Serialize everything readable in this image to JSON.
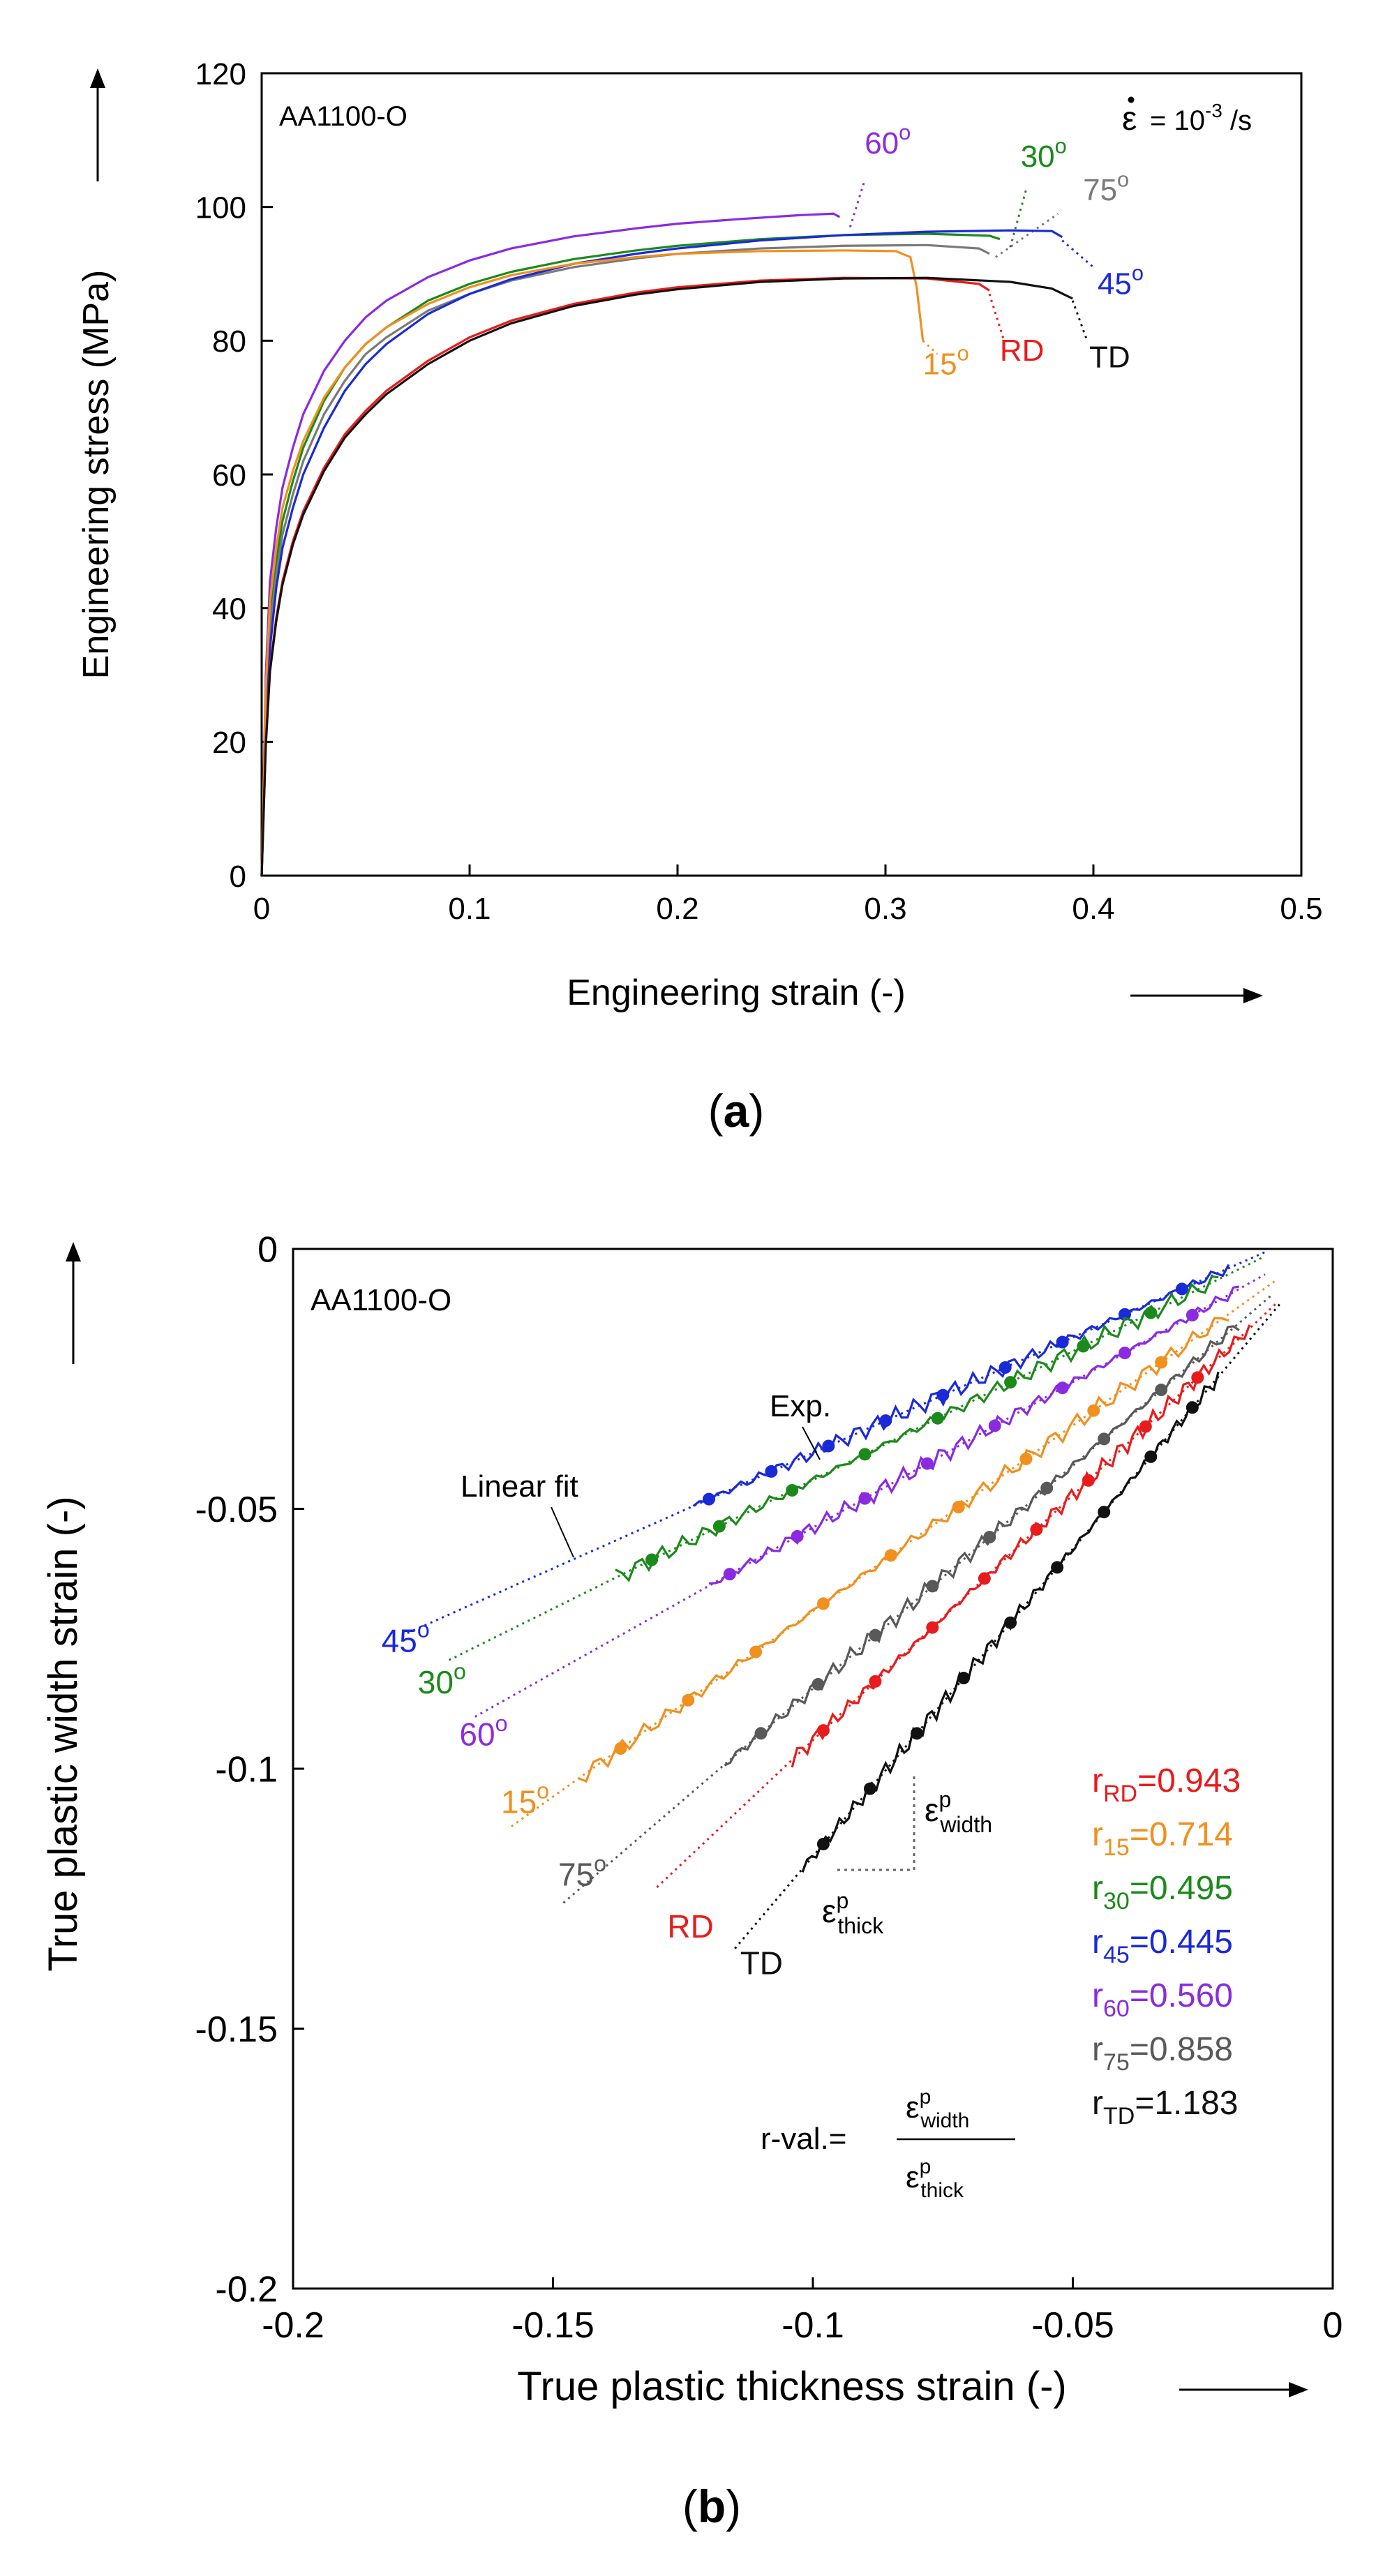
{
  "figure": {
    "caption_a": {
      "open": "(",
      "letter": "a",
      "close": ")"
    },
    "caption_b": {
      "open": "(",
      "letter": "b",
      "close": ")"
    }
  },
  "chart_data": [
    {
      "type": "line",
      "panel": "a",
      "material_label": "AA1100-O",
      "rate_label": {
        "epsilon": "ε",
        "text": "= 10",
        "exponent": "-3",
        "unit": " /s"
      },
      "xlabel": "Engineering strain (-)",
      "ylabel": "Engineering stress (MPa)",
      "xlim": [
        0,
        0.5
      ],
      "ylim": [
        0,
        120
      ],
      "xticks": [
        0,
        0.1,
        0.2,
        0.3,
        0.4,
        0.5
      ],
      "xtick_labels": [
        "0",
        "0.1",
        "0.2",
        "0.3",
        "0.4",
        "0.5"
      ],
      "yticks": [
        0,
        20,
        40,
        60,
        80,
        100,
        120
      ],
      "ytick_labels": [
        "0",
        "20",
        "40",
        "60",
        "80",
        "100",
        "120"
      ],
      "grid": false,
      "series": [
        {
          "name": "60",
          "deg": true,
          "color": "#8a2be2",
          "x": [
            0,
            0.002,
            0.004,
            0.007,
            0.01,
            0.015,
            0.02,
            0.03,
            0.04,
            0.05,
            0.06,
            0.08,
            0.1,
            0.12,
            0.15,
            0.18,
            0.2,
            0.23,
            0.26,
            0.275,
            0.278
          ],
          "y": [
            0,
            30,
            44,
            52,
            58,
            64,
            69,
            75.5,
            80,
            83.5,
            86,
            89.5,
            92,
            93.8,
            95.6,
            96.8,
            97.5,
            98.2,
            98.8,
            99.0,
            98.5
          ],
          "label_x": 0.29,
          "label_y": 108,
          "leader": [
            0.283,
            97,
            0.29,
            104
          ]
        },
        {
          "name": "30",
          "deg": true,
          "color": "#1b8a1b",
          "x": [
            0,
            0.002,
            0.004,
            0.007,
            0.01,
            0.015,
            0.02,
            0.03,
            0.04,
            0.05,
            0.06,
            0.08,
            0.1,
            0.12,
            0.15,
            0.18,
            0.2,
            0.24,
            0.28,
            0.32,
            0.35,
            0.355
          ],
          "y": [
            0,
            26,
            39,
            47,
            53,
            59,
            64,
            71,
            76,
            79.5,
            82,
            86,
            88.5,
            90.3,
            92.2,
            93.5,
            94.2,
            95.2,
            95.8,
            96.0,
            95.7,
            95.2
          ],
          "label_x": 0.365,
          "label_y": 106,
          "leader": [
            0.36,
            94,
            0.368,
            103
          ]
        },
        {
          "name": "75",
          "deg": true,
          "color": "#7a7a7a",
          "x": [
            0,
            0.002,
            0.004,
            0.007,
            0.01,
            0.015,
            0.02,
            0.03,
            0.04,
            0.05,
            0.06,
            0.08,
            0.1,
            0.12,
            0.15,
            0.18,
            0.2,
            0.24,
            0.28,
            0.32,
            0.345,
            0.35
          ],
          "y": [
            0,
            24,
            37,
            45,
            51,
            57,
            62,
            69,
            74,
            78,
            80.5,
            84.5,
            87,
            89,
            91,
            92.3,
            93,
            93.8,
            94.2,
            94.3,
            93.8,
            93.0
          ],
          "label_x": 0.395,
          "label_y": 101,
          "leader": [
            0.353,
            92.5,
            0.383,
            99
          ]
        },
        {
          "name": "45",
          "deg": true,
          "color": "#1a2ad8",
          "x": [
            0,
            0.002,
            0.004,
            0.007,
            0.01,
            0.015,
            0.02,
            0.03,
            0.04,
            0.05,
            0.06,
            0.08,
            0.1,
            0.12,
            0.15,
            0.18,
            0.2,
            0.24,
            0.28,
            0.32,
            0.36,
            0.38,
            0.385
          ],
          "y": [
            0,
            22,
            34,
            43,
            49,
            55,
            60,
            67,
            72.5,
            76.5,
            79.5,
            84,
            87,
            89.2,
            91.5,
            93,
            93.8,
            95,
            95.8,
            96.3,
            96.5,
            96.4,
            95.5
          ],
          "label_x": 0.402,
          "label_y": 87,
          "leader": [
            0.385,
            95,
            0.4,
            91
          ]
        },
        {
          "name": "15",
          "deg": true,
          "color": "#f0901e",
          "x": [
            0,
            0.002,
            0.004,
            0.007,
            0.01,
            0.015,
            0.02,
            0.03,
            0.04,
            0.05,
            0.06,
            0.08,
            0.1,
            0.12,
            0.15,
            0.18,
            0.2,
            0.24,
            0.28,
            0.305,
            0.312,
            0.315,
            0.318
          ],
          "y": [
            0,
            28,
            41,
            49,
            55,
            60.5,
            65,
            71.5,
            76,
            79.5,
            82,
            85.5,
            88,
            89.8,
            91.5,
            92.5,
            93,
            93.4,
            93.5,
            93.4,
            92.5,
            88,
            80
          ],
          "label_x": 0.318,
          "label_y": 75,
          "leader": [
            0.318,
            80,
            0.325,
            78
          ]
        },
        {
          "name": "RD",
          "deg": false,
          "color": "#e81c1c",
          "x": [
            0,
            0.002,
            0.004,
            0.007,
            0.01,
            0.015,
            0.02,
            0.03,
            0.04,
            0.05,
            0.06,
            0.08,
            0.1,
            0.12,
            0.15,
            0.18,
            0.2,
            0.24,
            0.28,
            0.32,
            0.345,
            0.35
          ],
          "y": [
            0,
            20,
            31,
            38.5,
            44,
            50,
            54.5,
            61,
            66,
            69.5,
            72.5,
            77,
            80.5,
            83,
            85.5,
            87.2,
            88,
            89,
            89.4,
            89.3,
            88.5,
            87.5
          ],
          "label_x": 0.355,
          "label_y": 77,
          "leader": [
            0.35,
            87,
            0.357,
            80
          ]
        },
        {
          "name": "TD",
          "deg": false,
          "color": "#111111",
          "x": [
            0,
            0.002,
            0.004,
            0.007,
            0.01,
            0.015,
            0.02,
            0.03,
            0.04,
            0.05,
            0.06,
            0.08,
            0.1,
            0.12,
            0.15,
            0.18,
            0.2,
            0.24,
            0.28,
            0.32,
            0.36,
            0.38,
            0.39
          ],
          "y": [
            0,
            19.5,
            30.5,
            38,
            43.5,
            49.5,
            54,
            60.5,
            65.5,
            69,
            72,
            76.5,
            80,
            82.6,
            85.2,
            86.9,
            87.7,
            88.8,
            89.3,
            89.4,
            88.8,
            87.8,
            86.3
          ],
          "label_x": 0.398,
          "label_y": 76,
          "leader": [
            0.39,
            86,
            0.397,
            80
          ]
        }
      ]
    },
    {
      "type": "line",
      "panel": "b",
      "material_label": "AA1100-O",
      "xlabel": "True plastic thickness strain (-)",
      "ylabel": "True plastic width strain (-)",
      "xlim": [
        -0.2,
        0
      ],
      "ylim": [
        -0.2,
        0
      ],
      "xticks": [
        -0.2,
        -0.15,
        -0.1,
        -0.05,
        0
      ],
      "xtick_labels": [
        "-0.2",
        "-0.15",
        "-0.1",
        "-0.05",
        "0"
      ],
      "yticks": [
        -0.2,
        -0.15,
        -0.1,
        -0.05,
        0
      ],
      "ytick_labels": [
        "-0.2",
        "-0.15",
        "-0.1",
        "-0.05",
        "0"
      ],
      "grid": false,
      "annotations": {
        "exp_label": "Exp.",
        "linear_fit_label": "Linear fit",
        "eps_symbol": "ε",
        "superscript_p": "p",
        "sub_width": "width",
        "sub_thick": "thick",
        "formula_prefix": "r-val.="
      },
      "series": [
        {
          "name": "45",
          "deg": true,
          "color": "#1a2ad8",
          "r_sub": "45",
          "r_value": "=0.445",
          "fit_x": [
            -0.178,
            -0.013
          ],
          "fit_y": [
            -0.0739,
            -0.0006
          ],
          "exp_x": [
            -0.123,
            -0.02
          ],
          "markers_x": [
            -0.12,
            -0.108,
            -0.097,
            -0.086,
            -0.075,
            -0.063,
            -0.052,
            -0.04,
            -0.029
          ],
          "label_x": -0.183,
          "label_y": -0.0775
        },
        {
          "name": "30",
          "deg": true,
          "color": "#1b8a1b",
          "r_sub": "30",
          "r_value": "=0.495",
          "fit_x": [
            -0.17,
            -0.013
          ],
          "fit_y": [
            -0.0791,
            -0.0014
          ],
          "exp_x": [
            -0.138,
            -0.022
          ],
          "markers_x": [
            -0.131,
            -0.118,
            -0.104,
            -0.09,
            -0.076,
            -0.062,
            -0.048,
            -0.035
          ],
          "label_x": -0.176,
          "label_y": -0.0855
        },
        {
          "name": "60",
          "deg": true,
          "color": "#8a2be2",
          "r_sub": "60",
          "r_value": "=0.560",
          "fit_x": [
            -0.165,
            -0.013
          ],
          "fit_y": [
            -0.09,
            -0.0049
          ],
          "exp_x": [
            -0.12,
            -0.018
          ],
          "markers_x": [
            -0.116,
            -0.103,
            -0.09,
            -0.078,
            -0.065,
            -0.052,
            -0.04,
            -0.027
          ],
          "label_x": -0.168,
          "label_y": -0.0955
        },
        {
          "name": "15",
          "deg": true,
          "color": "#f0901e",
          "r_sub": "15",
          "r_value": "=0.714",
          "fit_x": [
            -0.158,
            -0.011
          ],
          "fit_y": [
            -0.1111,
            -0.0061
          ],
          "exp_x": [
            -0.145,
            -0.02
          ],
          "markers_x": [
            -0.137,
            -0.124,
            -0.111,
            -0.098,
            -0.085,
            -0.072,
            -0.059,
            -0.046,
            -0.033
          ],
          "label_x": -0.16,
          "label_y": -0.1085
        },
        {
          "name": "75",
          "deg": true,
          "color": "#595959",
          "r_sub": "75",
          "r_value": "=0.858",
          "fit_x": [
            -0.148,
            -0.012
          ],
          "fit_y": [
            -0.1258,
            -0.0091
          ],
          "exp_x": [
            -0.117,
            -0.018
          ],
          "markers_x": [
            -0.11,
            -0.099,
            -0.088,
            -0.077,
            -0.066,
            -0.055,
            -0.044,
            -0.033
          ],
          "label_x": -0.149,
          "label_y": -0.1225
        },
        {
          "name": "RD",
          "deg": false,
          "color": "#e81c1c",
          "r_sub": "RD",
          "r_value": "=0.943",
          "fit_x": [
            -0.13,
            -0.011
          ],
          "fit_y": [
            -0.1228,
            -0.0106
          ],
          "exp_x": [
            -0.104,
            -0.016
          ],
          "markers_x": [
            -0.098,
            -0.088,
            -0.077,
            -0.067,
            -0.057,
            -0.047,
            -0.036,
            -0.026
          ],
          "label_x": -0.128,
          "label_y": -0.1325
        },
        {
          "name": "TD",
          "deg": false,
          "color": "#111111",
          "r_sub": "TD",
          "r_value": "=1.183",
          "fit_x": [
            -0.115,
            -0.01
          ],
          "fit_y": [
            -0.1346,
            -0.0104
          ],
          "exp_x": [
            -0.102,
            -0.022
          ],
          "markers_x": [
            -0.098,
            -0.089,
            -0.08,
            -0.071,
            -0.062,
            -0.053,
            -0.044,
            -0.035,
            -0.027
          ],
          "label_x": -0.114,
          "label_y": -0.1395
        }
      ]
    }
  ]
}
